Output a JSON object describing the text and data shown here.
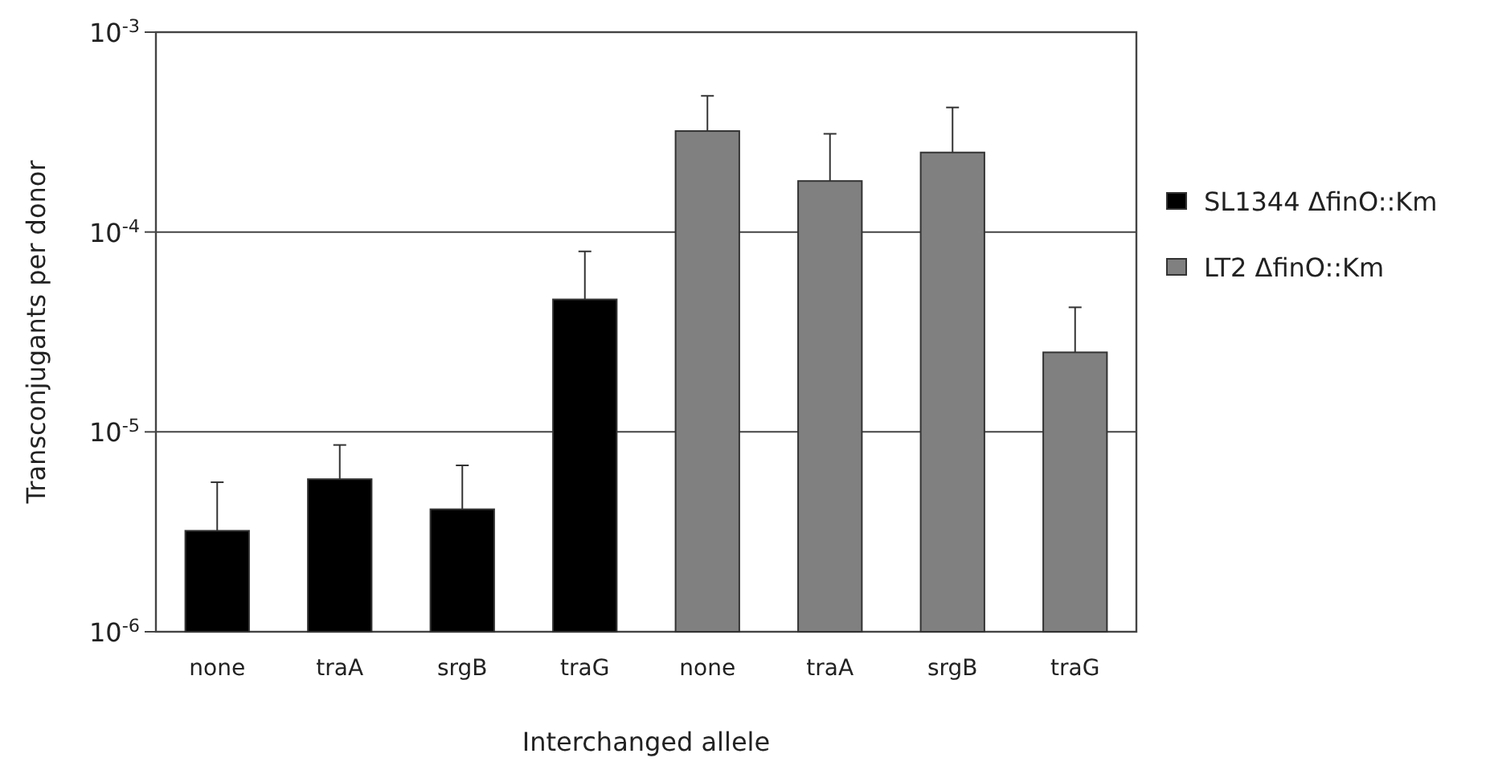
{
  "chart_data": {
    "type": "bar",
    "xlabel": "Interchanged allele",
    "ylabel": "Transconjugants per donor",
    "categories": [
      "none",
      "traA",
      "srgB",
      "traG",
      "none",
      "traA",
      "srgB",
      "traG"
    ],
    "series": [
      {
        "name": "SL1344 ΔfinO::Km",
        "color": "#000000",
        "values": [
          3.2e-06,
          5.8e-06,
          4.1e-06,
          4.6e-05,
          null,
          null,
          null,
          null
        ],
        "errors": [
          [
            3.2e-06,
            5.6e-06
          ],
          [
            5.8e-06,
            8.6e-06
          ],
          [
            4.1e-06,
            6.8e-06
          ],
          [
            4.6e-05,
            8e-05
          ],
          null,
          null,
          null,
          null
        ]
      },
      {
        "name": "LT2 ΔfinO::Km",
        "color": "#808080",
        "values": [
          null,
          null,
          null,
          null,
          0.00032,
          0.00018,
          0.00025,
          2.5e-05
        ],
        "errors": [
          null,
          null,
          null,
          null,
          [
            0.00032,
            0.00048
          ],
          [
            0.00018,
            0.00031
          ],
          [
            0.00025,
            0.00042
          ],
          [
            2.5e-05,
            4.2e-05
          ]
        ]
      }
    ],
    "log": "y",
    "ylim": [
      1e-06,
      0.001
    ],
    "yticks": [
      {
        "value": 1e-06,
        "label": "10$^{-6}$"
      },
      {
        "value": 1e-05,
        "label": "10$^{-5}$"
      },
      {
        "value": 0.0001,
        "label": "10$^{-4}$"
      },
      {
        "value": 0.001,
        "label": "10$^{-3}$"
      }
    ],
    "grid": "y",
    "legend": "right"
  }
}
